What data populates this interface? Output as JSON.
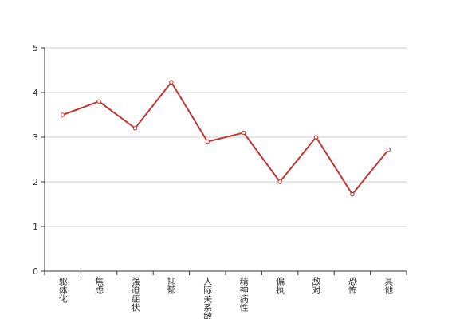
{
  "chart_data": {
    "type": "line",
    "categories": [
      "躯体化",
      "焦虑",
      "强迫症状",
      "抑郁",
      "人际关系敏感",
      "精神病性",
      "偏执",
      "敌对",
      "恐怖",
      "其他"
    ],
    "values": [
      3.5,
      3.8,
      3.2,
      4.23,
      2.9,
      3.1,
      2.0,
      3.0,
      1.72,
      2.72
    ],
    "color": "#c23531",
    "ylim": [
      0,
      5
    ],
    "yticks": [
      0,
      1,
      2,
      3,
      4,
      5
    ],
    "grid": true
  }
}
